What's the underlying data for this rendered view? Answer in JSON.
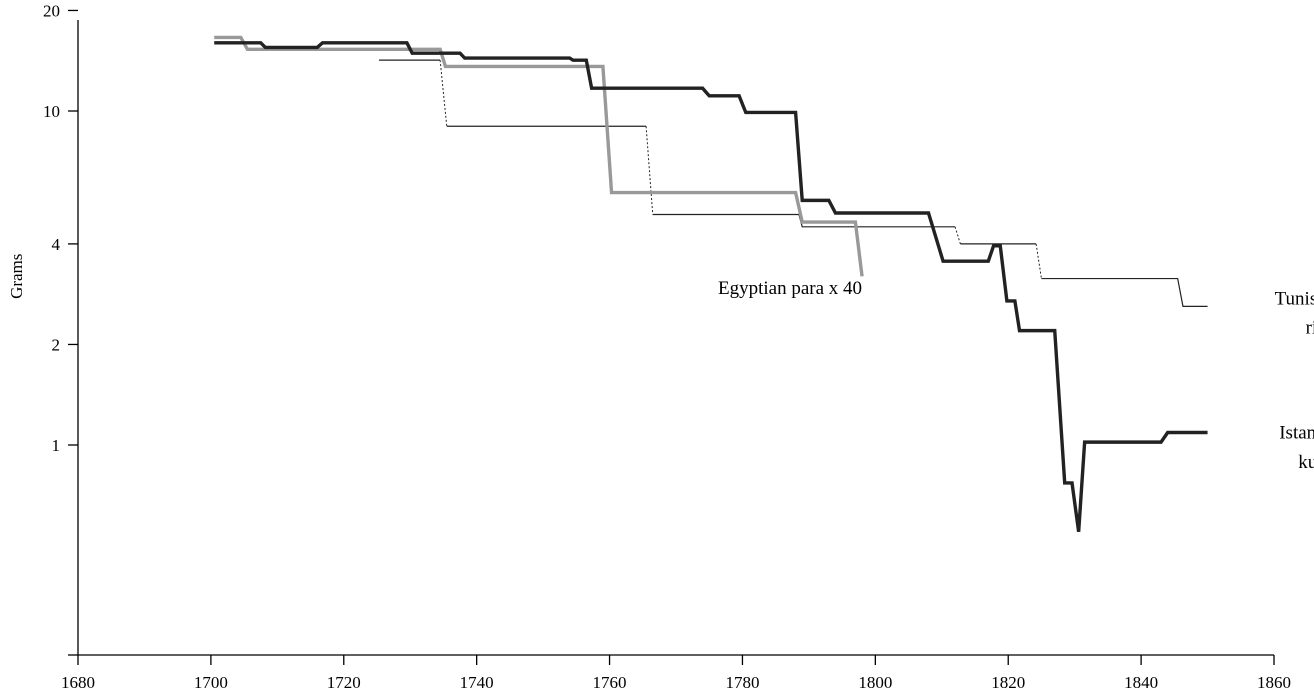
{
  "chart_data": {
    "type": "line",
    "title": "",
    "xlabel": "",
    "ylabel": "Grams",
    "xlim": [
      1680,
      1860
    ],
    "ylim": [
      0.3,
      20
    ],
    "yscale": "log",
    "grid": false,
    "x_ticks": [
      1680,
      1700,
      1720,
      1740,
      1760,
      1780,
      1800,
      1820,
      1840,
      1860
    ],
    "y_ticks": [
      20,
      10,
      4,
      2,
      1
    ],
    "series": [
      {
        "name": "Egyptian para x 40",
        "color": "#999999",
        "style": "thick",
        "points": [
          [
            1700.5,
            16.6
          ],
          [
            1704.5,
            16.6
          ],
          [
            1705.5,
            15.3
          ],
          [
            1734.5,
            15.3
          ],
          [
            1735.3,
            13.6
          ],
          [
            1759.0,
            13.6
          ],
          [
            1760.3,
            5.7
          ],
          [
            1788.0,
            5.7
          ],
          [
            1789.0,
            4.65
          ],
          [
            1797.0,
            4.65
          ],
          [
            1798.0,
            3.2
          ]
        ]
      },
      {
        "name": "Istanbul kuruş",
        "color": "#222222",
        "style": "thick",
        "points": [
          [
            1700.5,
            16.0
          ],
          [
            1707.5,
            16.0
          ],
          [
            1708.2,
            15.5
          ],
          [
            1716.0,
            15.5
          ],
          [
            1716.8,
            16.0
          ],
          [
            1729.5,
            16.0
          ],
          [
            1730.3,
            14.9
          ],
          [
            1737.5,
            14.9
          ],
          [
            1738.2,
            14.4
          ],
          [
            1754.0,
            14.4
          ],
          [
            1754.5,
            14.2
          ],
          [
            1756.5,
            14.2
          ],
          [
            1757.3,
            11.7
          ],
          [
            1774.0,
            11.7
          ],
          [
            1775.0,
            11.1
          ],
          [
            1779.5,
            11.1
          ],
          [
            1780.5,
            9.9
          ],
          [
            1788.0,
            9.9
          ],
          [
            1789.0,
            5.4
          ],
          [
            1793.0,
            5.4
          ],
          [
            1794.0,
            4.95
          ],
          [
            1808.0,
            4.95
          ],
          [
            1810.2,
            3.55
          ],
          [
            1817.0,
            3.55
          ],
          [
            1817.8,
            3.95
          ],
          [
            1818.8,
            3.95
          ],
          [
            1819.8,
            2.7
          ],
          [
            1821.0,
            2.7
          ],
          [
            1821.7,
            2.2
          ],
          [
            1827.0,
            2.2
          ],
          [
            1828.5,
            0.77
          ],
          [
            1829.6,
            0.77
          ],
          [
            1830.6,
            0.55
          ],
          [
            1831.5,
            1.02
          ],
          [
            1843.0,
            1.02
          ],
          [
            1844.0,
            1.09
          ],
          [
            1850.0,
            1.09
          ]
        ]
      },
      {
        "name": "Tunisian riyal",
        "color": "#222222",
        "style": "thin",
        "points": [
          [
            1725.3,
            14.2
          ],
          [
            1734.5,
            14.2
          ],
          [
            1735.5,
            9.0
          ],
          [
            1765.5,
            9.0
          ],
          [
            1766.5,
            4.9
          ],
          [
            1788.5,
            4.9
          ],
          [
            1789.0,
            4.5
          ],
          [
            1812.0,
            4.5
          ],
          [
            1812.8,
            4.0
          ],
          [
            1824.2,
            4.0
          ],
          [
            1825.0,
            3.15
          ],
          [
            1845.5,
            3.15
          ],
          [
            1846.3,
            2.6
          ],
          [
            1850.0,
            2.6
          ]
        ],
        "dotted_segments": [
          [
            1734.5,
            1735.5
          ],
          [
            1765.5,
            1766.5
          ],
          [
            1812.0,
            1812.8
          ],
          [
            1824.2,
            1825.0
          ]
        ]
      }
    ],
    "annotations": [
      {
        "text": "Egyptian para x 40",
        "x": 1798,
        "y": 2.95,
        "anchor": "end"
      },
      {
        "text": "Tunisian",
        "x": 1870,
        "y": 2.75,
        "anchor": "end"
      },
      {
        "text": "riyal",
        "x": 1870,
        "y": 2.25,
        "anchor": "end"
      },
      {
        "text": "Istanbul",
        "x": 1870,
        "y": 1.09,
        "anchor": "end"
      },
      {
        "text": "kuruș",
        "x": 1870,
        "y": 0.89,
        "anchor": "end"
      }
    ]
  }
}
